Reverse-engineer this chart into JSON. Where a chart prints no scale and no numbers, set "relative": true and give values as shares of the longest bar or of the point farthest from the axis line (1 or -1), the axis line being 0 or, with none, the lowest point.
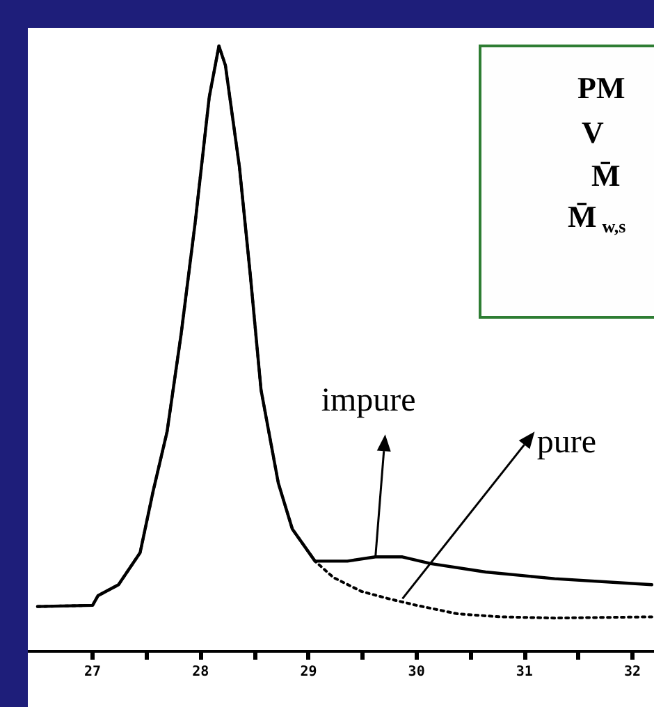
{
  "chart_data": {
    "type": "line",
    "relative": true,
    "xlim": [
      26.4,
      32.2
    ],
    "xticks": [
      27,
      {
        "value": 27.5,
        "label": null
      },
      28,
      {
        "value": 28.5,
        "label": null
      },
      29,
      {
        "value": 29.5,
        "label": null
      },
      30,
      {
        "value": 30.5,
        "label": null
      },
      31,
      {
        "value": 31.5,
        "label": null
      },
      32
    ],
    "tick_labels": "x",
    "grid": false,
    "marker": "none",
    "series": [
      {
        "color": "#000000",
        "line_style": "solid",
        "x": [
          26.49,
          27.0,
          27.05,
          27.24,
          27.44,
          27.56,
          27.69,
          27.82,
          27.95,
          28.08,
          28.17,
          28.23,
          28.36,
          28.46,
          28.56,
          28.72,
          28.85,
          29.06,
          29.36,
          29.62,
          29.87,
          30.13,
          30.64,
          31.28,
          32.18
        ],
        "values": [
          0.074,
          0.076,
          0.092,
          0.11,
          0.163,
          0.264,
          0.363,
          0.524,
          0.708,
          0.915,
          1,
          0.968,
          0.8,
          0.623,
          0.432,
          0.278,
          0.202,
          0.149,
          0.149,
          0.156,
          0.156,
          0.145,
          0.131,
          0.12,
          0.11
        ]
      },
      {
        "color": "#000000",
        "line_style": "dotted",
        "x": [
          26.49,
          27.0,
          27.05,
          27.24,
          27.44,
          27.56,
          27.69,
          27.82,
          27.95,
          28.08,
          28.17,
          28.23,
          28.36,
          28.46,
          28.56,
          28.72,
          28.85,
          29.06,
          29.23,
          29.49,
          29.74,
          30.0,
          30.38,
          30.77,
          31.28,
          32.18
        ],
        "values": [
          0.074,
          0.076,
          0.092,
          0.11,
          0.163,
          0.264,
          0.363,
          0.524,
          0.708,
          0.915,
          1,
          0.968,
          0.8,
          0.623,
          0.432,
          0.278,
          0.202,
          0.149,
          0.122,
          0.099,
          0.087,
          0.076,
          0.062,
          0.057,
          0.055,
          0.057
        ]
      }
    ],
    "annotations": [
      "PM",
      "V",
      "M̄",
      "M̄$_{w,s}$",
      {
        "text": "impure",
        "x": 29.62,
        "y": 0.156
      },
      {
        "text": "pure",
        "x": 29.87,
        "y": 0.087
      }
    ]
  }
}
